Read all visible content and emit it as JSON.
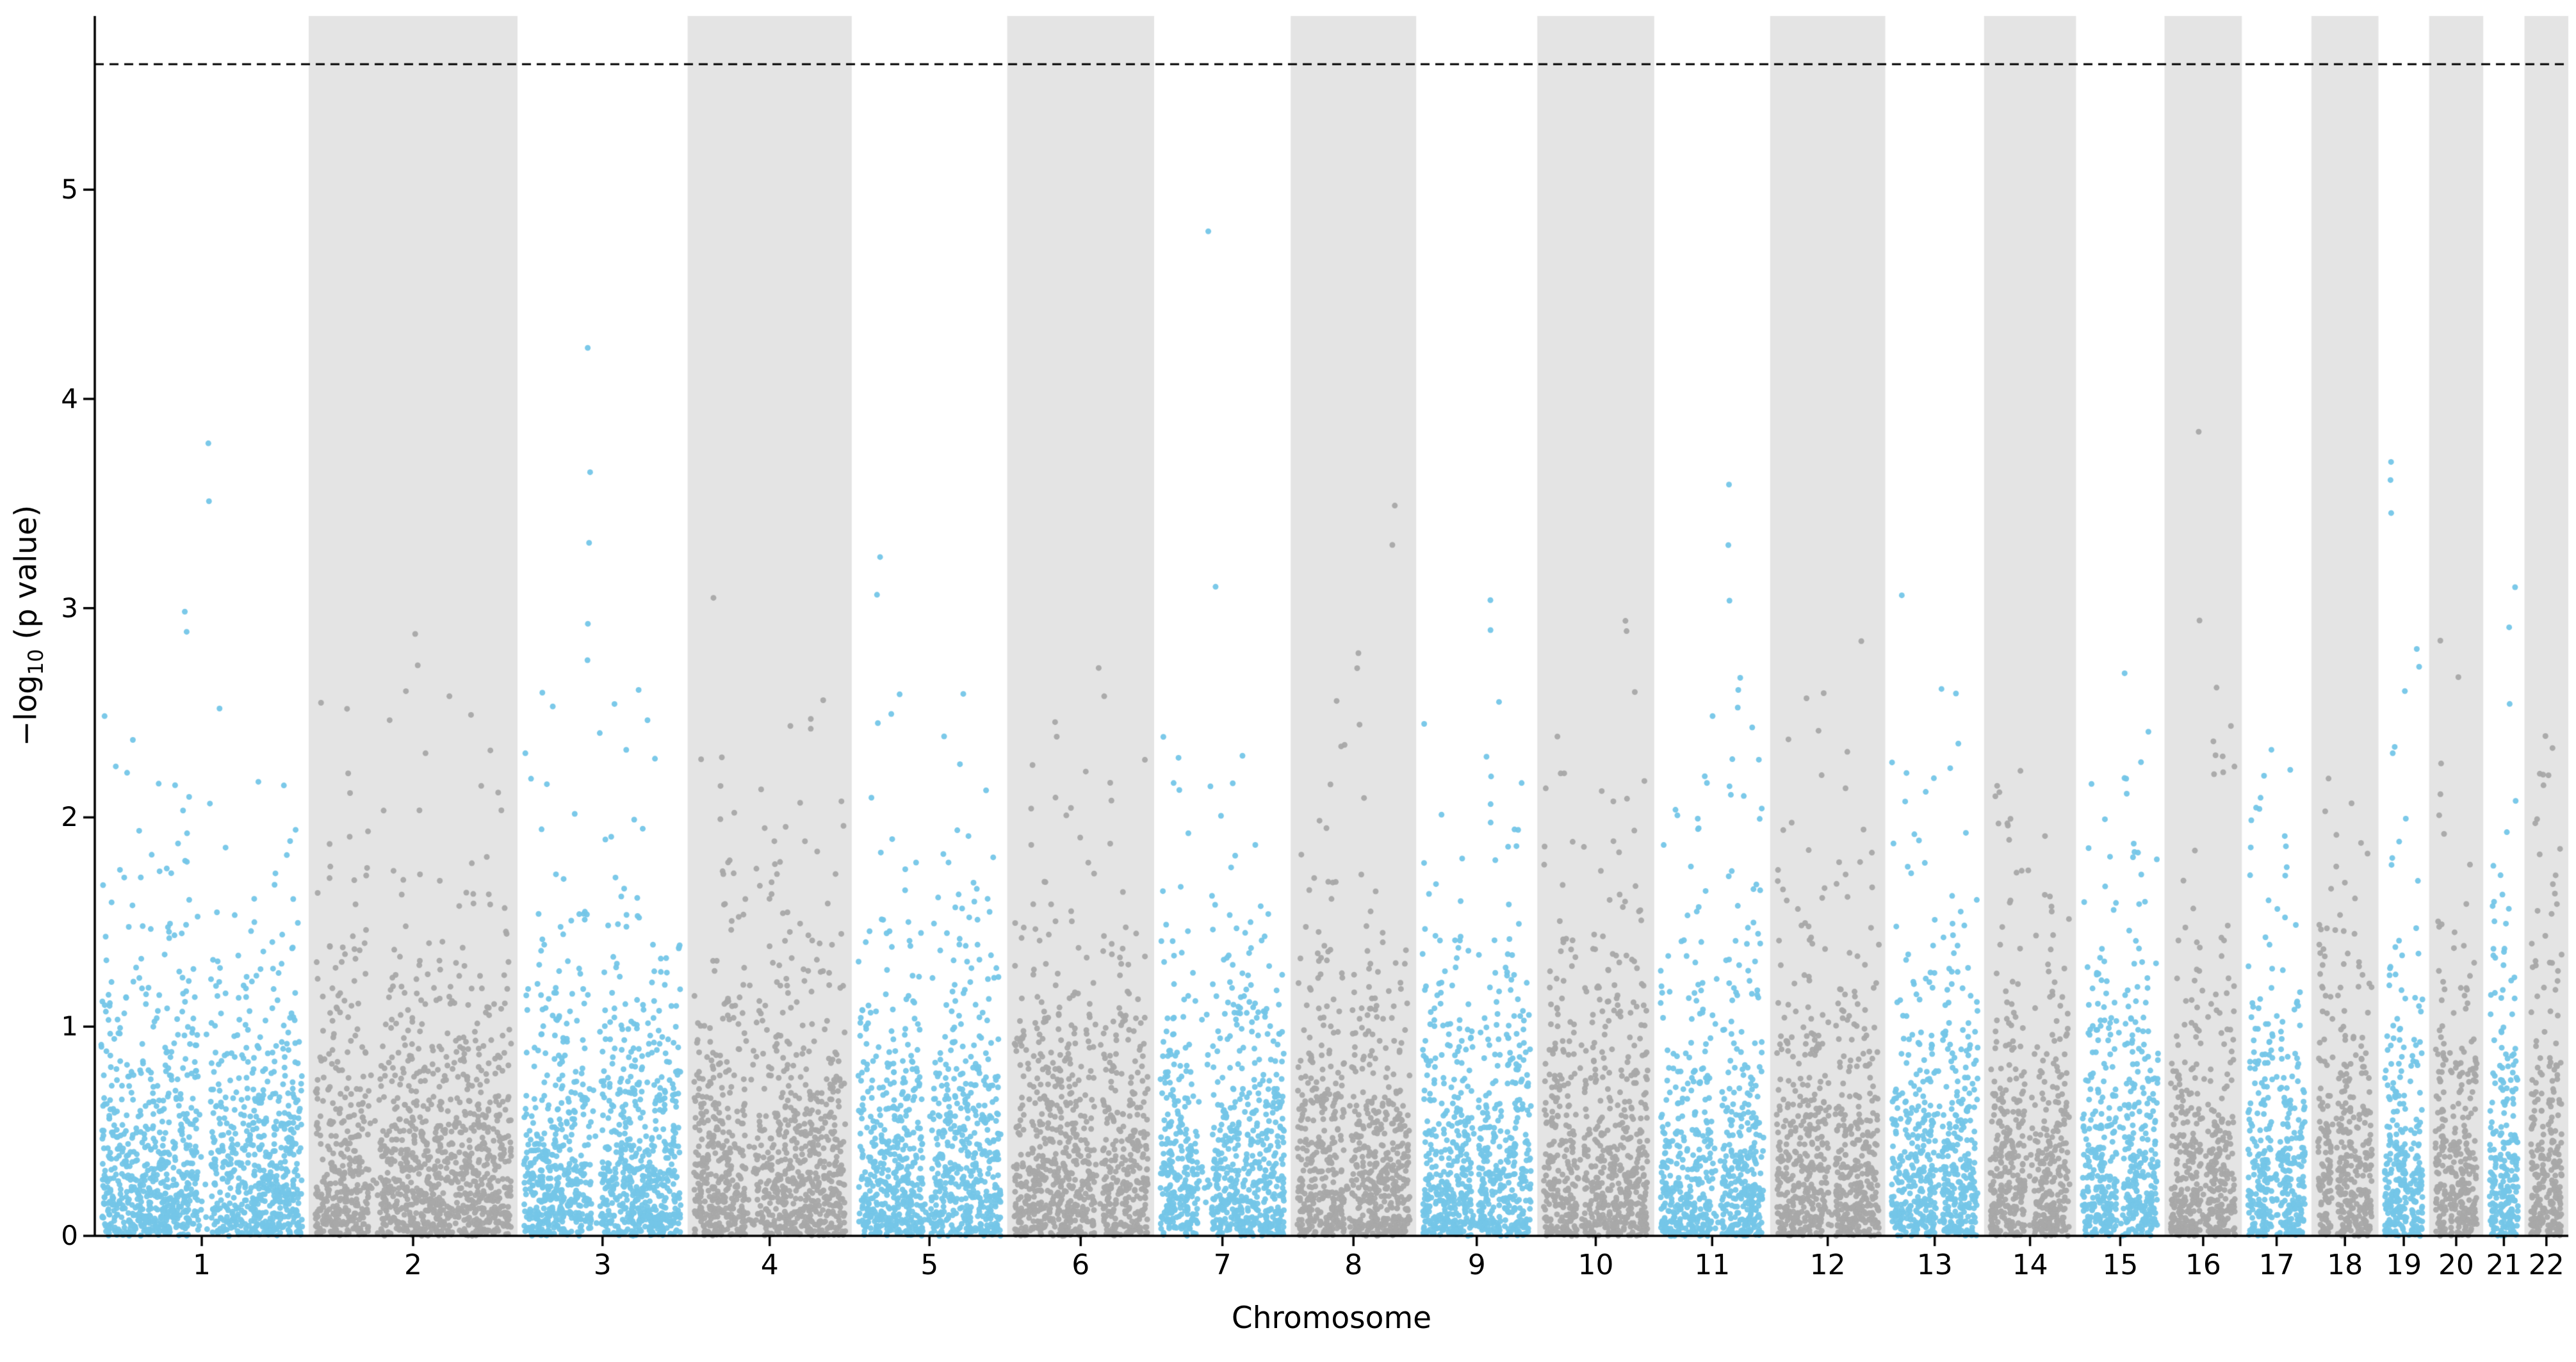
{
  "figure": {
    "xlabel": "Chromosome",
    "ylabel": {
      "prefix": "−log",
      "sub": "10",
      "suffix": " (p value)"
    }
  },
  "chart_data": {
    "type": "scatter",
    "variant": "manhattan",
    "title": "",
    "xlabel": "Chromosome",
    "ylabel": "−log10 (p value)",
    "ylim": [
      0,
      5.83
    ],
    "yticks": [
      0,
      1,
      2,
      3,
      4,
      5
    ],
    "grid": false,
    "legend": null,
    "threshold_line": {
      "y": 5.6,
      "style": "dashed",
      "color": "#000000"
    },
    "style": {
      "odd_point_color": "#74c6e8",
      "even_point_color": "#a8a8a8",
      "even_band_color": "#e4e4e4",
      "odd_band_color": "#ffffff",
      "axis_color": "#000000",
      "points_per_mb": 5.5,
      "point_radius": 4.5,
      "baseline_cap": 2.6
    },
    "chromosomes": [
      {
        "label": "1",
        "length_mb": 249,
        "signal_columns": [
          [
            3.78,
            3.52
          ],
          [
            2.98,
            2.88
          ],
          [
            2.2
          ],
          [
            2.15
          ]
        ]
      },
      {
        "label": "2",
        "length_mb": 243,
        "signal_columns": [
          [
            2.88,
            2.74
          ],
          [
            2.6
          ],
          [
            2.45
          ],
          [
            2.3
          ]
        ]
      },
      {
        "label": "3",
        "length_mb": 198,
        "signal_columns": [
          [
            4.25,
            3.65,
            3.3,
            2.92,
            2.75
          ],
          [
            2.6
          ],
          [
            2.4
          ],
          [
            2.15
          ]
        ]
      },
      {
        "label": "4",
        "length_mb": 191,
        "signal_columns": [
          [
            3.05
          ],
          [
            2.48,
            2.42
          ],
          [
            2.3
          ],
          [
            1.95
          ]
        ]
      },
      {
        "label": "5",
        "length_mb": 181,
        "signal_columns": [
          [
            3.25,
            3.05
          ],
          [
            2.6
          ],
          [
            2.45
          ],
          [
            1.9
          ]
        ]
      },
      {
        "label": "6",
        "length_mb": 171,
        "signal_columns": [
          [
            2.7
          ],
          [
            2.58
          ],
          [
            2.45,
            2.38
          ],
          [
            2.05
          ]
        ]
      },
      {
        "label": "7",
        "length_mb": 159,
        "signal_columns": [
          [
            4.8
          ],
          [
            3.1
          ],
          [
            2.3
          ],
          [
            2.15
          ]
        ]
      },
      {
        "label": "8",
        "length_mb": 146,
        "signal_columns": [
          [
            3.5,
            3.3
          ],
          [
            2.8,
            2.72
          ],
          [
            2.55
          ],
          [
            2.1
          ]
        ]
      },
      {
        "label": "9",
        "length_mb": 141,
        "signal_columns": [
          [
            3.05,
            2.9
          ],
          [
            2.3
          ],
          [
            2.2
          ],
          [
            2.05
          ]
        ]
      },
      {
        "label": "10",
        "length_mb": 136,
        "signal_columns": [
          [
            2.95,
            2.88
          ],
          [
            2.6
          ],
          [
            2.4
          ],
          [
            1.95
          ]
        ]
      },
      {
        "label": "11",
        "length_mb": 135,
        "signal_columns": [
          [
            3.6,
            3.3,
            3.05
          ],
          [
            2.68,
            2.6,
            2.52
          ],
          [
            2.1
          ],
          [
            1.95
          ]
        ]
      },
      {
        "label": "12",
        "length_mb": 134,
        "signal_columns": [
          [
            2.85
          ],
          [
            2.6
          ],
          [
            2.42
          ],
          [
            2.3
          ]
        ]
      },
      {
        "label": "13",
        "length_mb": 115,
        "signal_columns": [
          [
            3.05
          ],
          [
            2.6
          ],
          [
            2.12
          ],
          [
            1.9
          ]
        ]
      },
      {
        "label": "14",
        "length_mb": 107,
        "signal_columns": [
          [
            2.22
          ],
          [
            2.12
          ],
          [
            2.0
          ],
          [
            1.9
          ]
        ]
      },
      {
        "label": "15",
        "length_mb": 103,
        "signal_columns": [
          [
            2.7
          ],
          [
            2.42
          ],
          [
            2.12
          ],
          [
            2.0
          ]
        ]
      },
      {
        "label": "16",
        "length_mb": 90,
        "signal_columns": [
          [
            3.85
          ],
          [
            2.95
          ],
          [
            2.62
          ],
          [
            2.3,
            2.22
          ]
        ]
      },
      {
        "label": "17",
        "length_mb": 81,
        "signal_columns": [
          [
            2.32
          ],
          [
            2.2
          ],
          [
            2.1
          ],
          [
            1.9
          ]
        ]
      },
      {
        "label": "18",
        "length_mb": 78,
        "signal_columns": [
          [
            2.2
          ],
          [
            2.08
          ],
          [
            1.92
          ]
        ]
      },
      {
        "label": "19",
        "length_mb": 59,
        "signal_columns": [
          [
            3.7,
            3.6,
            3.45
          ],
          [
            2.8,
            2.72
          ],
          [
            2.6
          ],
          [
            2.35
          ]
        ]
      },
      {
        "label": "20",
        "length_mb": 63,
        "signal_columns": [
          [
            2.85
          ],
          [
            2.68
          ],
          [
            2.1
          ]
        ]
      },
      {
        "label": "21",
        "length_mb": 48,
        "signal_columns": [
          [
            3.1
          ],
          [
            2.9
          ],
          [
            2.55
          ]
        ]
      },
      {
        "label": "22",
        "length_mb": 51,
        "signal_columns": [
          [
            2.4
          ],
          [
            2.32
          ],
          [
            2.2
          ],
          [
            2.0
          ]
        ]
      }
    ]
  }
}
